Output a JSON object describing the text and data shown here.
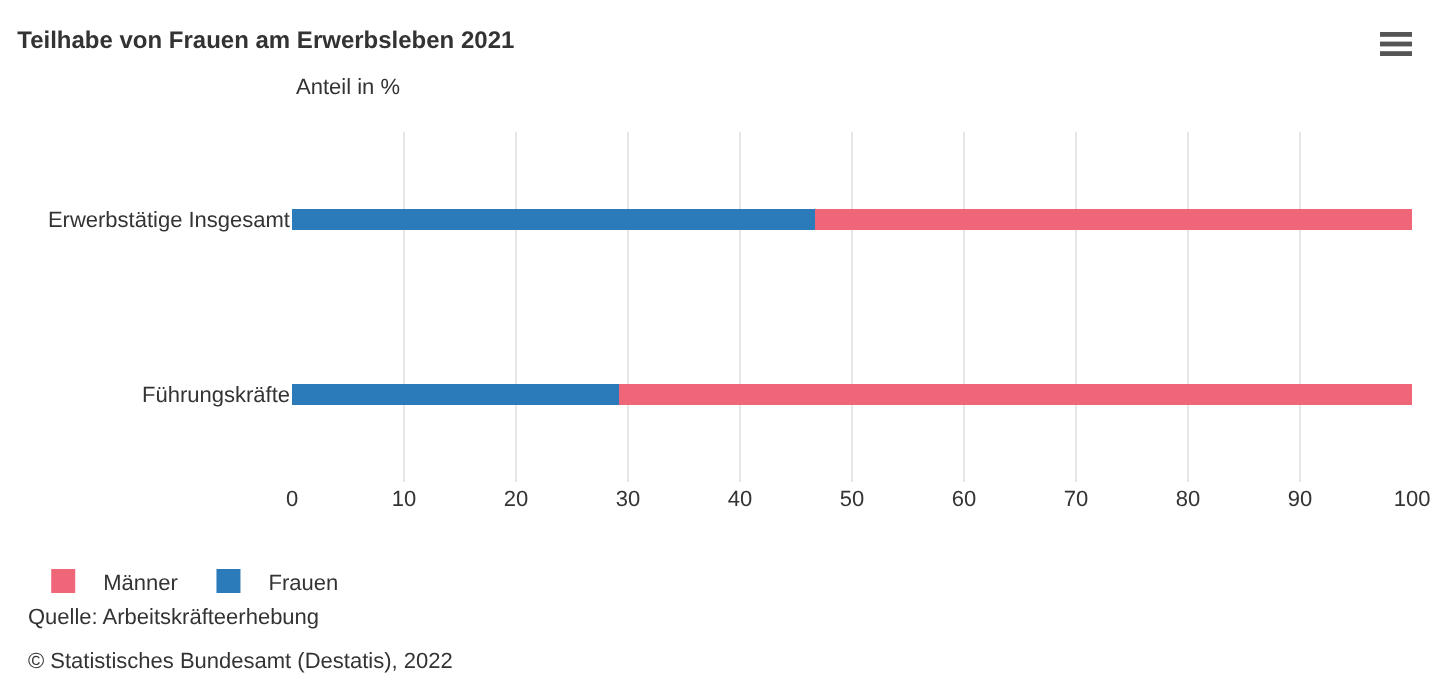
{
  "chart_data": {
    "type": "bar",
    "orientation": "horizontal",
    "stacked": true,
    "title": "Teilhabe von Frauen am Erwerbsleben 2021",
    "subtitle": "Anteil in %",
    "categories": [
      "Erwerbstätige Insgesamt",
      "Führungskräfte"
    ],
    "series": [
      {
        "name": "Frauen",
        "color": "#2b7bba",
        "values": [
          46.7,
          29.2
        ]
      },
      {
        "name": "Männer",
        "color": "#ee6677",
        "values": [
          53.3,
          70.8
        ]
      }
    ],
    "xlim": [
      0,
      100
    ],
    "xticks": [
      0,
      10,
      20,
      30,
      40,
      50,
      60,
      70,
      80,
      90,
      100
    ],
    "grid": "x",
    "legend": "bottom left",
    "annotations": [
      "Quelle: Arbeitskräfteerhebung",
      "© Statistisches Bundesamt (Destatis), 2022"
    ]
  }
}
